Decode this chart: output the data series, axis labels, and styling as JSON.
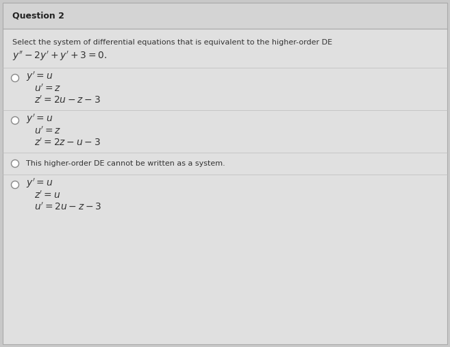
{
  "title": "Question 2",
  "bg_color": "#c8c8c8",
  "card_color": "#e0e0e0",
  "header_color": "#d4d4d4",
  "question_text": "Select the system of differential equations that is equivalent to the higher-order DE",
  "de_equation": "y'' - 2y' + y' + 3 = 0.",
  "opt1": [
    "$y' = u$",
    "$u' = z$",
    "$z' = 2u - z - 3$"
  ],
  "opt2": [
    "$y' = u$",
    "$u' = z$",
    "$z' = 2z - u - 3$"
  ],
  "opt3": [
    "This higher-order DE cannot be written as a system."
  ],
  "opt4": [
    "$y' = u$",
    "$z' = u$",
    "$u' = 2u - z - 3$"
  ],
  "title_fontsize": 9,
  "question_fontsize": 8,
  "eq_fontsize": 10,
  "option_fontsize": 10,
  "plain_fontsize": 8
}
